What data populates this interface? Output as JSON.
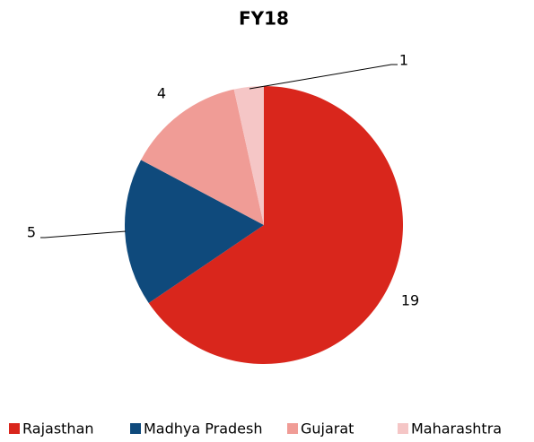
{
  "chart_data": {
    "type": "pie",
    "title": "FY18",
    "categories": [
      "Rajasthan",
      "Madhya Pradesh",
      "Gujarat",
      "Maharashtra"
    ],
    "values": [
      19,
      5,
      4,
      1
    ],
    "colors": [
      "#d9261c",
      "#0f4a7c",
      "#f09c96",
      "#f5c6c6"
    ],
    "legend": "bottom"
  }
}
